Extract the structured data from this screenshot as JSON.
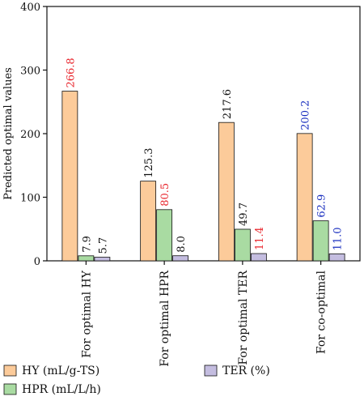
{
  "chart_data": {
    "type": "bar",
    "title": "",
    "xlabel": "",
    "ylabel": "Predicted optimal values",
    "ylim": [
      0,
      400
    ],
    "yticks": [
      0,
      100,
      200,
      300,
      400
    ],
    "grid": false,
    "legend_placement": "bottom",
    "categories": [
      "For optimal HY",
      "For optimal HPR",
      "For optimal TER",
      "For co-optimal"
    ],
    "series": [
      {
        "name": "HY (mL/g-TS)",
        "color": "#FCCB9A",
        "values": [
          266.8,
          125.3,
          217.6,
          200.2
        ],
        "labels": [
          "266.8",
          "125.3",
          "217.6",
          "200.2"
        ],
        "label_colors": [
          "#e8262d",
          "#111111",
          "#111111",
          "#1a2fbf"
        ]
      },
      {
        "name": "HPR (mL/L/h)",
        "color": "#A9DBA2",
        "values": [
          7.9,
          80.5,
          49.7,
          62.9
        ],
        "labels": [
          "7.9",
          "80.5",
          "49.7",
          "62.9"
        ],
        "label_colors": [
          "#111111",
          "#e8262d",
          "#111111",
          "#1a2fbf"
        ]
      },
      {
        "name": "TER (%)",
        "color": "#C4BDE0",
        "values": [
          5.7,
          8.0,
          11.4,
          11.0
        ],
        "labels": [
          "5.7",
          "8.0",
          "11.4",
          "11.0"
        ],
        "label_colors": [
          "#111111",
          "#111111",
          "#e8262d",
          "#1a2fbf"
        ]
      }
    ]
  }
}
